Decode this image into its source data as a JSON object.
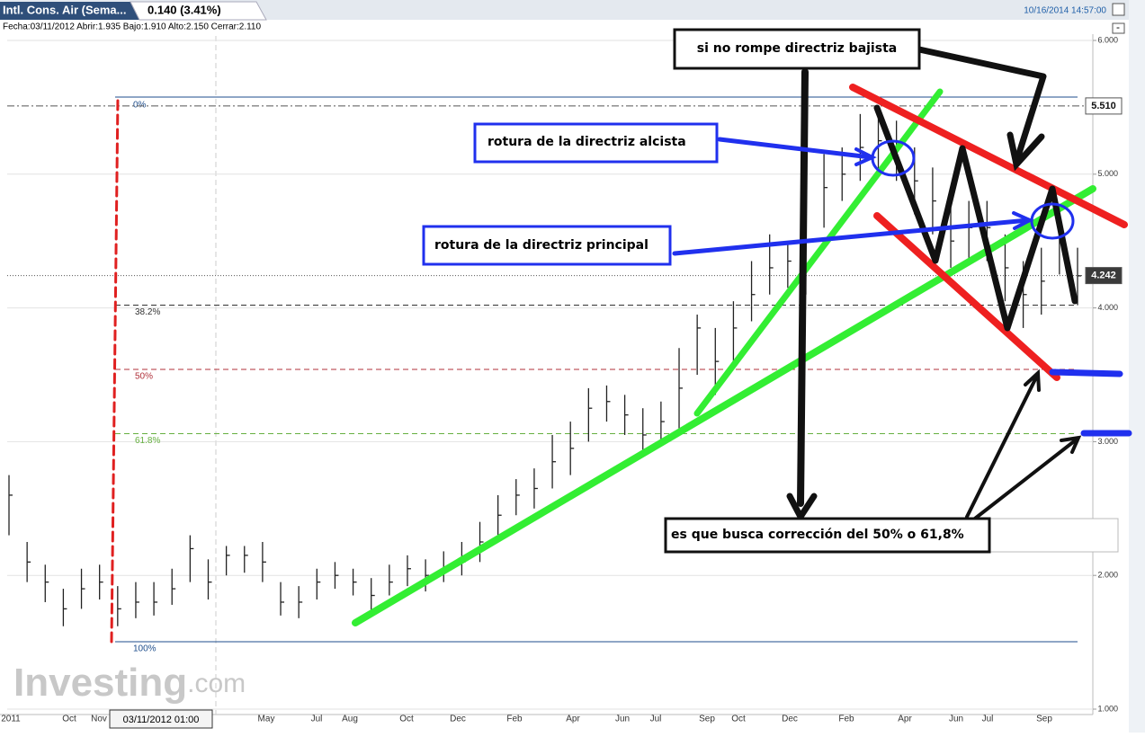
{
  "header": {
    "instrument": "Intl. Cons. Air (Sema...",
    "change": "0.140 (3.41%)",
    "timestamp": "10/16/2014 14:57:00",
    "info": "Fecha:03/11/2012 Abrir:1.935 Bajo:1.910 Alto:2.150 Cerrar:2.110",
    "minimize": "-"
  },
  "chart_data": {
    "type": "ohlc",
    "categories": [
      "2011",
      "Oct",
      "Nov",
      "May",
      "Jul",
      "Aug",
      "Oct",
      "Dec",
      "Feb",
      "Apr",
      "Jun",
      "Jul",
      "Sep",
      "Oct",
      "Dec",
      "Feb",
      "Apr",
      "Jun",
      "Jul",
      "Sep"
    ],
    "crosshair_label": "03/11/2012 01:00",
    "close": [
      2.6,
      2.1,
      1.95,
      1.75,
      1.9,
      1.95,
      1.75,
      1.8,
      1.8,
      1.9,
      2.2,
      1.95,
      2.15,
      2.15,
      2.1,
      1.8,
      1.8,
      1.95,
      2.0,
      1.95,
      1.85,
      1.95,
      2.05,
      2.0,
      2.05,
      2.1,
      2.25,
      2.45,
      2.6,
      2.65,
      2.85,
      2.95,
      3.25,
      3.3,
      3.2,
      3.05,
      3.15,
      3.4,
      3.85,
      3.6,
      3.85,
      4.1,
      4.3,
      4.35,
      4.3,
      4.9,
      5.0,
      5.2,
      5.25,
      5.2,
      4.95,
      4.8,
      4.5,
      4.6,
      4.6,
      4.3,
      4.1,
      4.2,
      4.5,
      4.24
    ],
    "high": [
      2.75,
      2.25,
      2.08,
      1.9,
      2.05,
      2.08,
      1.92,
      1.95,
      1.95,
      2.05,
      2.3,
      2.12,
      2.22,
      2.22,
      2.25,
      1.95,
      1.92,
      2.05,
      2.1,
      2.05,
      1.98,
      2.08,
      2.15,
      2.12,
      2.18,
      2.25,
      2.4,
      2.6,
      2.72,
      2.8,
      3.05,
      3.15,
      3.4,
      3.42,
      3.35,
      3.25,
      3.3,
      3.7,
      3.95,
      3.85,
      4.05,
      4.35,
      4.55,
      4.5,
      4.5,
      5.15,
      5.2,
      5.45,
      5.5,
      5.4,
      5.2,
      5.05,
      4.75,
      4.8,
      4.8,
      4.55,
      4.35,
      4.45,
      4.7,
      4.45
    ],
    "low": [
      2.3,
      1.95,
      1.8,
      1.62,
      1.75,
      1.82,
      1.62,
      1.68,
      1.7,
      1.78,
      1.95,
      1.82,
      2.0,
      2.02,
      1.95,
      1.7,
      1.68,
      1.82,
      1.9,
      1.85,
      1.72,
      1.85,
      1.92,
      1.88,
      1.95,
      2.0,
      2.1,
      2.3,
      2.45,
      2.5,
      2.65,
      2.75,
      3.0,
      3.15,
      3.05,
      2.9,
      3.0,
      3.1,
      3.5,
      3.35,
      3.6,
      3.9,
      4.1,
      4.15,
      4.1,
      4.6,
      4.8,
      4.95,
      5.0,
      4.95,
      4.7,
      4.55,
      4.3,
      4.35,
      4.35,
      4.05,
      3.85,
      3.95,
      4.25,
      4.02
    ],
    "color": "#222222",
    "ylim": [
      1,
      6
    ],
    "yticks": [
      {
        "value": 1,
        "label": "1.000"
      },
      {
        "value": 2,
        "label": "2.000"
      },
      {
        "value": 3,
        "label": "3.000"
      },
      {
        "value": 4,
        "label": "4.000"
      },
      {
        "value": 5,
        "label": "5.000"
      },
      {
        "value": 6,
        "label": "6.000"
      }
    ],
    "grid": true,
    "fibonacci": [
      {
        "value": 5.577,
        "label": "0%",
        "color": "#1f4e8c"
      },
      {
        "value": 4.021,
        "label": "38.2%",
        "color": "#333333"
      },
      {
        "value": 3.54,
        "label": "50%",
        "color": "#b0303a"
      },
      {
        "value": 3.06,
        "label": "61.8%",
        "color": "#66b040"
      },
      {
        "value": 1.504,
        "label": "100%",
        "color": "#1f4e8c"
      }
    ],
    "last_price": {
      "value": 4.242,
      "label": "4.242"
    },
    "ref_price": {
      "value": 5.51,
      "label": "5.510"
    }
  },
  "annotations": [
    "si no rompe directriz bajista",
    "rotura de la directriz alcista",
    "rotura de la directriz principal",
    "es que busca corrección del 50% o 61,8%"
  ],
  "watermark": {
    "brand": "Investing",
    "suffix": ".com"
  }
}
